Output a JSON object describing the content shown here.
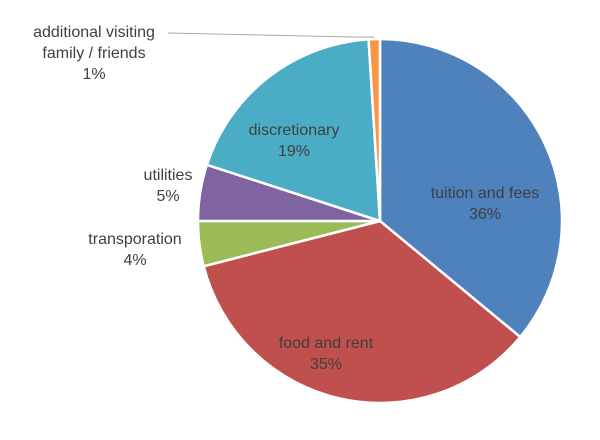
{
  "chart_data": {
    "type": "pie",
    "title": "",
    "slices": [
      {
        "label": "tuition and fees",
        "value": 36,
        "value_label": "36%",
        "color": "#4f81bd"
      },
      {
        "label": "food and rent",
        "value": 35,
        "value_label": "35%",
        "color": "#c0504d"
      },
      {
        "label": "transporation",
        "value": 4,
        "value_label": "4%",
        "color": "#9bbb59"
      },
      {
        "label": "utilities",
        "value": 5,
        "value_label": "5%",
        "color": "#8064a2"
      },
      {
        "label": "discretionary",
        "value": 19,
        "value_label": "19%",
        "color": "#4bacc6"
      },
      {
        "label": "additional visiting family / friends",
        "value": 1,
        "value_label": "1%",
        "color": "#f79646"
      }
    ],
    "label_lines": {
      "additional visiting family / friends": [
        "additional visiting",
        "family / friends"
      ]
    },
    "start": "12 o'clock",
    "direction": "clockwise",
    "slice_border_color": "#ffffff",
    "leader_line_color": "#a6a6a6"
  }
}
